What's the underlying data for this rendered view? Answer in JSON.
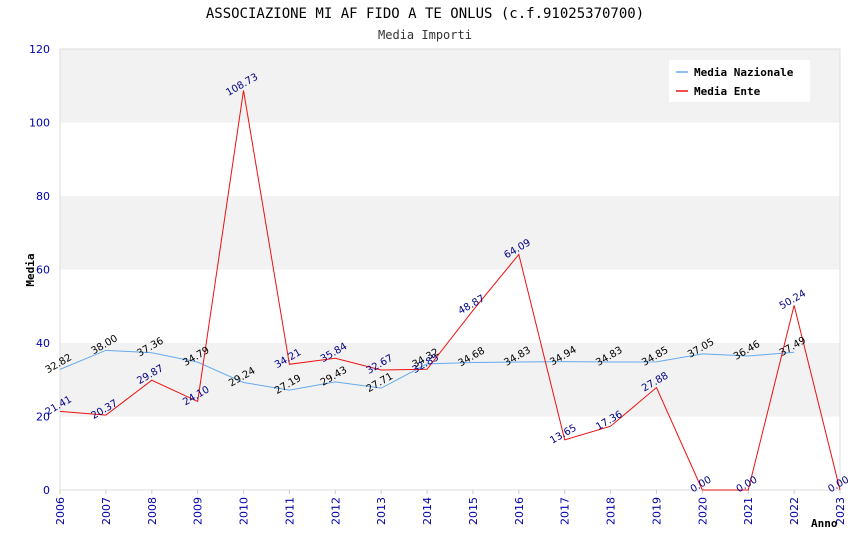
{
  "chart_data": {
    "type": "line",
    "title": "ASSOCIAZIONE MI AF FIDO A TE ONLUS (c.f.91025370700)",
    "subtitle": "Media Importi",
    "ylabel": "Media",
    "xlabel": "Anno",
    "ylim": [
      0,
      120
    ],
    "yticks": [
      "0",
      "20",
      "40",
      "60",
      "80",
      "100",
      "120"
    ],
    "categories": [
      "2006",
      "2007",
      "2008",
      "2009",
      "2010",
      "2011",
      "2012",
      "2013",
      "2014",
      "2015",
      "2016",
      "2017",
      "2018",
      "2019",
      "2020",
      "2021",
      "2022",
      "2023"
    ],
    "legend_position": "top-right",
    "grid": true,
    "series": [
      {
        "name": "Media Nazionale",
        "color": "#66aaee",
        "values": [
          32.82,
          38.0,
          37.36,
          34.79,
          29.24,
          27.19,
          29.43,
          27.71,
          34.32,
          34.68,
          34.83,
          34.94,
          34.83,
          34.85,
          37.05,
          36.46,
          37.49,
          null
        ],
        "labels": [
          "32.82",
          "38.00",
          "37.36",
          "34.79",
          "29.24",
          "27.19",
          "29.43",
          "27.71",
          "34.32",
          "34.68",
          "34.83",
          "34.94",
          "34.83",
          "34.85",
          "37.05",
          "36.46",
          "37.49",
          ""
        ]
      },
      {
        "name": "Media Ente",
        "color": "#ee1111",
        "values": [
          21.41,
          20.37,
          29.87,
          24.1,
          108.73,
          34.21,
          35.84,
          32.67,
          32.85,
          48.87,
          64.09,
          13.65,
          17.36,
          27.88,
          0.0,
          0.0,
          50.24,
          0.0
        ],
        "labels": [
          "21.41",
          "20.37",
          "29.87",
          "24.10",
          "108.73",
          "34.21",
          "35.84",
          "32.67",
          "32.85",
          "48.87",
          "64.09",
          "13.65",
          "17.36",
          "27.88",
          "0.00",
          "0.00",
          "50.24",
          "0.00"
        ]
      }
    ]
  }
}
